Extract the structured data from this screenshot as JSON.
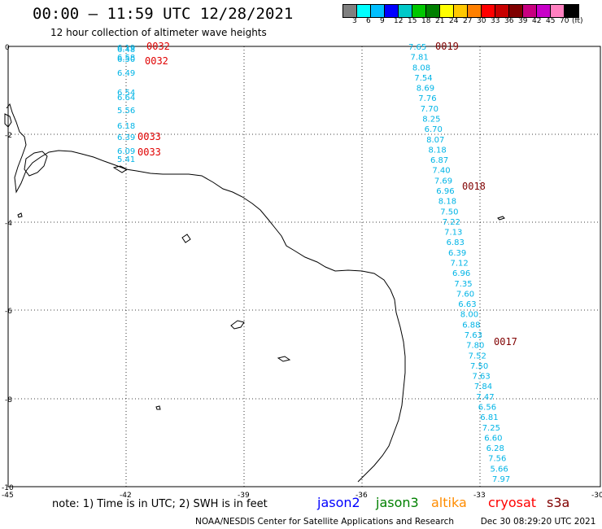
{
  "header": {
    "title": "00:00 – 11:59 UTC 12/28/2021",
    "subtitle": "12 hour collection of altimeter wave heights"
  },
  "colorbar": {
    "colors": [
      "#808080",
      "#00ffff",
      "#00bfff",
      "#0000ff",
      "#00c8c8",
      "#00c800",
      "#008000",
      "#ffff00",
      "#ffc800",
      "#ff8000",
      "#ff0000",
      "#c80000",
      "#800000",
      "#c80080",
      "#c800c8",
      "#ff80c0",
      "#000000"
    ],
    "ticks": [
      "3",
      "6",
      "9",
      "12",
      "15",
      "18",
      "21",
      "24",
      "27",
      "30",
      "33",
      "36",
      "39",
      "42",
      "45",
      "70",
      "(ft)"
    ]
  },
  "axes": {
    "lat_labels": [
      "0",
      "-2",
      "-4",
      "-6",
      "-8",
      "-10"
    ],
    "lon_labels": [
      "-45",
      "-42",
      "-39",
      "-36",
      "-33",
      "-30"
    ]
  },
  "swh_colors": {
    "light_blue": "#00b4e6",
    "red_label": "#e00000",
    "dark_red_label": "#800000"
  },
  "tracks": {
    "west": {
      "values": [
        "6.19",
        "6.48",
        "6.58",
        "6.50",
        "6.49",
        "6.54",
        "6.64",
        "5.56",
        "6.18",
        "6.39",
        "6.09",
        "5.41"
      ],
      "times": [
        "0032",
        "0032",
        "0033",
        "0033"
      ]
    },
    "east": {
      "values": [
        "7.65",
        "7.81",
        "8.08",
        "7.54",
        "8.69",
        "7.76",
        "7.70",
        "8.25",
        "6.70",
        "8.07",
        "8.18",
        "6.87",
        "7.40",
        "7.69",
        "6.96",
        "8.18",
        "7.50",
        "7.22",
        "7.13",
        "6.83",
        "6.39",
        "7.12",
        "6.96",
        "7.35",
        "7.60",
        "6.63",
        "8.00",
        "6.88",
        "7.63",
        "7.80",
        "7.52",
        "7.50",
        "7.63",
        "7.84",
        "7.47",
        "6.56",
        "6.81",
        "7.25",
        "6.60",
        "6.28",
        "7.56",
        "5.66",
        "7.97"
      ],
      "times": [
        "0019",
        "0018",
        "0017"
      ]
    }
  },
  "footer": {
    "note": "note: 1) Time is in UTC; 2) SWH is in feet",
    "legend": [
      {
        "name": "jason2",
        "color": "#0000ff"
      },
      {
        "name": "jason3",
        "color": "#008000"
      },
      {
        "name": "altika",
        "color": "#ff8c00"
      },
      {
        "name": "cryosat",
        "color": "#ff0000"
      },
      {
        "name": "s3a",
        "color": "#800000"
      }
    ],
    "credit": "NOAA/NESDIS Center for Satellite Applications and Research",
    "timestamp": "Dec 30 08:29:20 UTC 2021"
  }
}
